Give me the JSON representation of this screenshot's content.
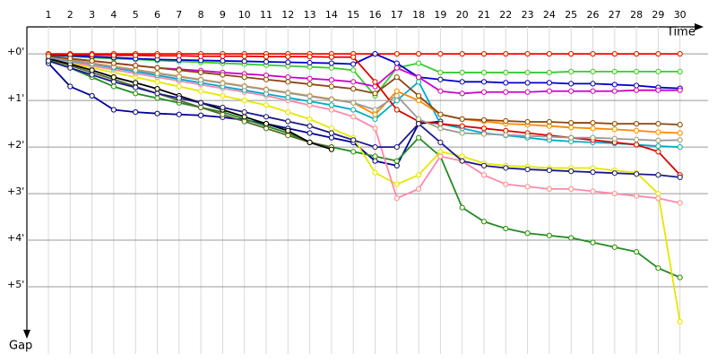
{
  "chart_data": {
    "type": "line",
    "x_label": "Time",
    "y_label": "Gap",
    "categories": [
      "1",
      "2",
      "3",
      "4",
      "5",
      "6",
      "7",
      "8",
      "9",
      "10",
      "11",
      "12",
      "13",
      "14",
      "15",
      "16",
      "17",
      "18",
      "19",
      "20",
      "21",
      "22",
      "23",
      "24",
      "25",
      "26",
      "27",
      "28",
      "29",
      "30"
    ],
    "ylim": [
      -0.58,
      6.0
    ],
    "yticks": [
      {
        "value": 0,
        "label": "+0'"
      },
      {
        "value": 1,
        "label": "+1'"
      },
      {
        "value": 2,
        "label": "+2'"
      },
      {
        "value": 3,
        "label": "+3'"
      },
      {
        "value": 4,
        "label": "+4'"
      },
      {
        "value": 5,
        "label": "+5'"
      }
    ],
    "grid": true,
    "series": [
      {
        "color": "#ff0000",
        "values": [
          0,
          0,
          0,
          0,
          0,
          0,
          0,
          0,
          0,
          0,
          0,
          0,
          0,
          0,
          0,
          0,
          0,
          0,
          0,
          0,
          0,
          0,
          0,
          0,
          0,
          0,
          0,
          0,
          0,
          0
        ]
      },
      {
        "color": "#33cc33",
        "values": [
          0.03,
          0.05,
          0.08,
          0.1,
          0.12,
          0.14,
          0.16,
          0.18,
          0.2,
          0.22,
          0.24,
          0.26,
          0.28,
          0.3,
          0.35,
          0.9,
          0.3,
          0.2,
          0.4,
          0.4,
          0.4,
          0.4,
          0.4,
          0.4,
          0.38,
          0.38,
          0.38,
          0.38,
          0.38,
          0.38
        ]
      },
      {
        "color": "#0000cc",
        "values": [
          0.02,
          0.04,
          0.06,
          0.08,
          0.1,
          0.12,
          0.13,
          0.14,
          0.15,
          0.16,
          0.17,
          0.18,
          0.19,
          0.2,
          0.22,
          0,
          0.2,
          0.5,
          0.55,
          0.6,
          0.6,
          0.62,
          0.62,
          0.62,
          0.64,
          0.64,
          0.66,
          0.68,
          0.72,
          0.74
        ]
      },
      {
        "color": "#cc00cc",
        "values": [
          0.05,
          0.1,
          0.15,
          0.2,
          0.25,
          0.3,
          0.33,
          0.36,
          0.4,
          0.43,
          0.46,
          0.5,
          0.53,
          0.56,
          0.6,
          0.7,
          0.3,
          0.5,
          0.8,
          0.85,
          0.82,
          0.82,
          0.82,
          0.8,
          0.8,
          0.8,
          0.8,
          0.78,
          0.78,
          0.78
        ]
      },
      {
        "color": "#000099",
        "values": [
          0.2,
          0.7,
          0.9,
          1.2,
          1.25,
          1.28,
          1.3,
          1.32,
          1.36,
          1.42,
          1.5,
          1.6,
          1.7,
          1.8,
          1.9,
          2.3,
          2.4,
          1.5,
          1.45,
          null,
          null,
          null,
          null,
          null,
          null,
          null,
          null,
          null,
          null,
          null
        ]
      },
      {
        "color": "#228b22",
        "values": [
          0.15,
          0.3,
          0.5,
          0.7,
          0.85,
          0.95,
          1.05,
          1.15,
          1.25,
          1.4,
          1.55,
          1.7,
          1.9,
          2.0,
          2.1,
          2.2,
          2.3,
          1.8,
          2.2,
          3.3,
          3.6,
          3.75,
          3.85,
          3.9,
          3.95,
          4.05,
          4.15,
          4.25,
          4.6,
          4.8
        ]
      },
      {
        "color": "#e6e600",
        "values": [
          0.1,
          0.2,
          0.3,
          0.4,
          0.5,
          0.6,
          0.7,
          0.8,
          0.9,
          1.0,
          1.1,
          1.25,
          1.4,
          1.6,
          1.8,
          2.55,
          2.8,
          2.6,
          2.1,
          2.2,
          2.35,
          2.4,
          2.42,
          2.45,
          2.45,
          2.45,
          2.5,
          2.55,
          3.0,
          5.75
        ]
      },
      {
        "color": "#ff88aa",
        "values": [
          0.1,
          0.18,
          0.26,
          0.34,
          0.42,
          0.5,
          0.58,
          0.66,
          0.74,
          0.82,
          0.9,
          1.0,
          1.1,
          1.2,
          1.35,
          1.6,
          3.1,
          2.9,
          2.2,
          2.3,
          2.6,
          2.8,
          2.85,
          2.9,
          2.9,
          2.95,
          3.0,
          3.05,
          3.1,
          3.2
        ]
      },
      {
        "color": "#556b2f",
        "values": [
          0.12,
          0.25,
          0.4,
          0.55,
          0.7,
          0.85,
          1.0,
          1.15,
          1.3,
          1.45,
          1.6,
          1.75,
          1.9,
          2.0,
          null,
          null,
          null,
          null,
          null,
          null,
          null,
          null,
          null,
          null,
          null,
          null,
          null,
          null,
          null,
          null
        ]
      },
      {
        "color": "#000000",
        "values": [
          0.1,
          0.22,
          0.35,
          0.5,
          0.62,
          0.75,
          0.9,
          1.05,
          1.2,
          1.35,
          1.5,
          1.65,
          1.9,
          2.05,
          null,
          null,
          null,
          null,
          null,
          null,
          null,
          null,
          null,
          null,
          null,
          null,
          null,
          null,
          null,
          null
        ]
      },
      {
        "color": "#00aacc",
        "values": [
          0.08,
          0.15,
          0.22,
          0.3,
          0.38,
          0.46,
          0.54,
          0.62,
          0.7,
          0.78,
          0.86,
          0.94,
          1.02,
          1.1,
          1.2,
          1.4,
          1.0,
          0.6,
          1.5,
          1.6,
          1.7,
          1.75,
          1.8,
          1.85,
          1.88,
          1.9,
          1.92,
          1.95,
          1.98,
          2.0
        ]
      },
      {
        "color": "#ff8800",
        "values": [
          0.06,
          0.13,
          0.2,
          0.27,
          0.34,
          0.41,
          0.48,
          0.55,
          0.62,
          0.69,
          0.76,
          0.83,
          0.9,
          0.97,
          1.05,
          1.3,
          0.8,
          1.0,
          1.3,
          1.4,
          1.45,
          1.5,
          1.52,
          1.55,
          1.58,
          1.6,
          1.62,
          1.65,
          1.68,
          1.7
        ]
      },
      {
        "color": "#dd0000",
        "values": [
          0.01,
          0.02,
          0.02,
          0.03,
          0.03,
          0.04,
          0.04,
          0.05,
          0.05,
          0.05,
          0.06,
          0.06,
          0.06,
          0.07,
          0.07,
          0.6,
          1.2,
          1.45,
          1.5,
          1.55,
          1.6,
          1.65,
          1.7,
          1.75,
          1.8,
          1.85,
          1.9,
          1.95,
          2.1,
          2.6
        ]
      },
      {
        "color": "#999999",
        "values": [
          0.07,
          0.14,
          0.21,
          0.28,
          0.35,
          0.42,
          0.49,
          0.56,
          0.63,
          0.7,
          0.77,
          0.84,
          0.91,
          0.98,
          1.05,
          1.2,
          0.9,
          1.4,
          1.6,
          1.7,
          1.72,
          1.74,
          1.76,
          1.78,
          1.8,
          1.8,
          1.82,
          1.84,
          1.86,
          1.85
        ]
      },
      {
        "color": "#8b4513",
        "values": [
          0.05,
          0.1,
          0.15,
          0.2,
          0.25,
          0.3,
          0.35,
          0.4,
          0.45,
          0.5,
          0.55,
          0.6,
          0.65,
          0.7,
          0.75,
          0.85,
          0.5,
          0.9,
          1.3,
          1.4,
          1.42,
          1.44,
          1.46,
          1.46,
          1.48,
          1.48,
          1.5,
          1.5,
          1.5,
          1.52
        ]
      },
      {
        "color": "#1a1a8c",
        "values": [
          0.15,
          0.3,
          0.45,
          0.6,
          0.72,
          0.85,
          0.95,
          1.05,
          1.15,
          1.25,
          1.35,
          1.45,
          1.55,
          1.7,
          1.85,
          2.0,
          2.0,
          1.5,
          1.9,
          2.3,
          2.4,
          2.45,
          2.48,
          2.5,
          2.52,
          2.54,
          2.56,
          2.58,
          2.6,
          2.65
        ]
      }
    ]
  }
}
